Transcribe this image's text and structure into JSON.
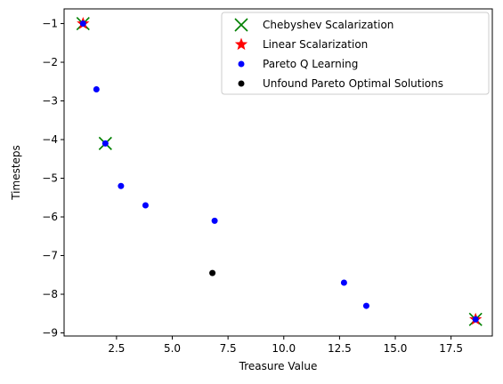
{
  "chart_data": {
    "type": "scatter",
    "xlabel": "Treasure Value",
    "ylabel": "Timesteps",
    "xlim": [
      0.15,
      19.35
    ],
    "ylim": [
      -9.08,
      -0.62
    ],
    "grid": false,
    "legend_placement": "top-right",
    "x_ticks": [
      2.5,
      5.0,
      7.5,
      10.0,
      12.5,
      15.0,
      17.5
    ],
    "x_tick_labels": [
      "2.5",
      "5.0",
      "7.5",
      "10.0",
      "12.5",
      "15.0",
      "17.5"
    ],
    "y_ticks": [
      -1,
      -2,
      -3,
      -4,
      -5,
      -6,
      -7,
      -8,
      -9
    ],
    "y_tick_labels": [
      "−1",
      "−2",
      "−3",
      "−4",
      "−5",
      "−6",
      "−7",
      "−8",
      "−9"
    ],
    "series": [
      {
        "name": "Chebyshev Scalarization",
        "marker": "x-cross",
        "color": "#008000",
        "points": [
          [
            1.0,
            -1.0
          ],
          [
            2.0,
            -4.1
          ],
          [
            18.6,
            -8.65
          ]
        ]
      },
      {
        "name": "Linear Scalarization",
        "marker": "star",
        "color": "#ff0000",
        "points": [
          [
            1.0,
            -1.0
          ],
          [
            18.6,
            -8.65
          ]
        ]
      },
      {
        "name": "Pareto Q Learning",
        "marker": "dot",
        "color": "#0000ff",
        "points": [
          [
            1.0,
            -1.0
          ],
          [
            1.6,
            -2.7
          ],
          [
            2.0,
            -4.1
          ],
          [
            2.7,
            -5.2
          ],
          [
            3.8,
            -5.7
          ],
          [
            6.9,
            -6.1
          ],
          [
            12.7,
            -7.7
          ],
          [
            13.7,
            -8.3
          ],
          [
            18.6,
            -8.65
          ]
        ]
      },
      {
        "name": "Unfound Pareto Optimal Solutions",
        "marker": "dot",
        "color": "#000000",
        "points": [
          [
            6.8,
            -7.45
          ]
        ]
      }
    ]
  }
}
